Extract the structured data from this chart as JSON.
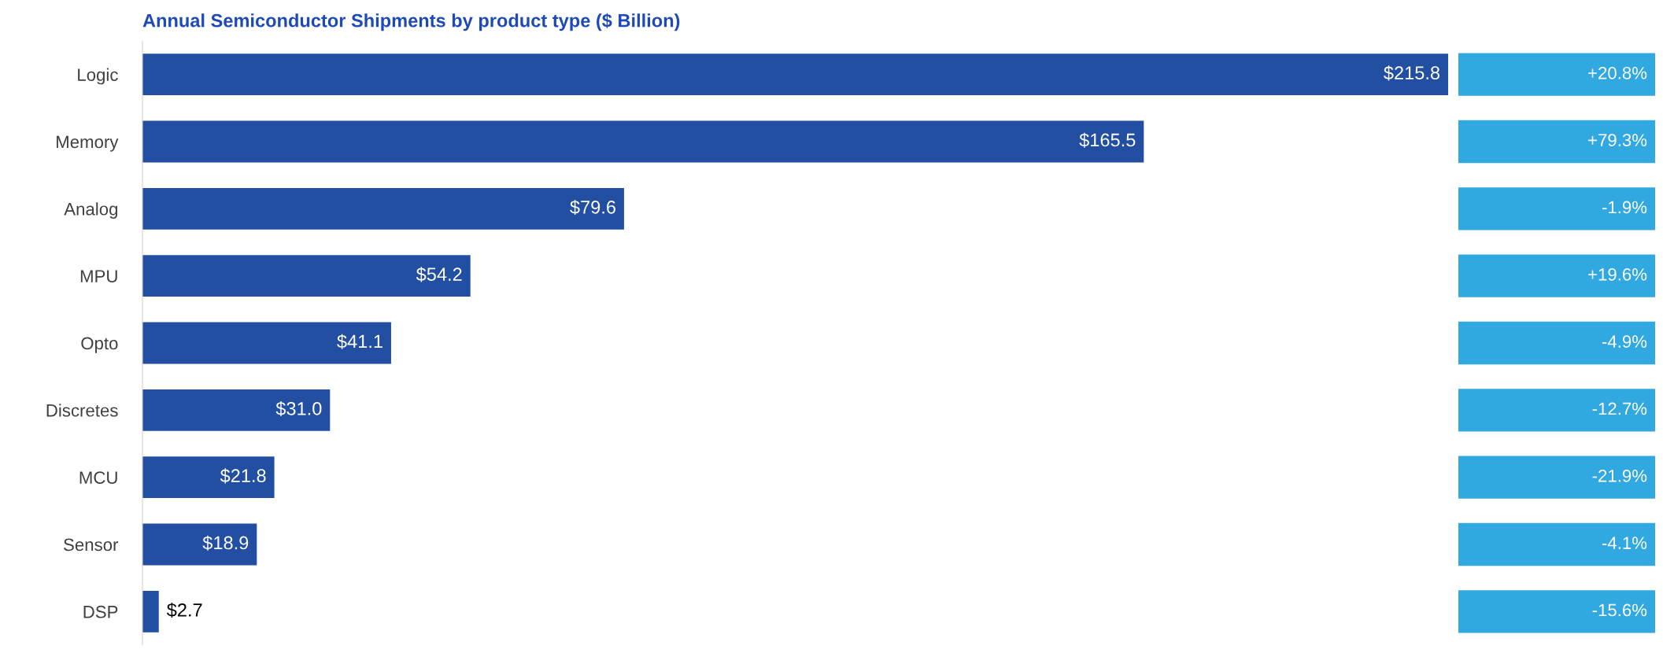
{
  "chart_data": [
    {
      "type": "bar",
      "orientation": "horizontal",
      "title": "Annual Semiconductor Shipments by product type ($ Billion)",
      "categories": [
        "Logic",
        "Memory",
        "Analog",
        "MPU",
        "Opto",
        "Discretes",
        "MCU",
        "Sensor",
        "DSP"
      ],
      "values": [
        215.8,
        165.5,
        79.6,
        54.2,
        41.1,
        31.0,
        21.8,
        18.9,
        2.7
      ],
      "value_labels": [
        "$215.8",
        "$165.5",
        "$79.6",
        "$54.2",
        "$41.1",
        "$31.0",
        "$21.8",
        "$18.9",
        "$2.7"
      ],
      "color": "#234fa3"
    },
    {
      "type": "other",
      "color": "#31a9e0",
      "annotations": [
        "+20.8%",
        "+79.3%",
        "-1.9%",
        "+19.6%",
        "-4.9%",
        "-12.7%",
        "-21.9%",
        "-4.1%",
        "-15.6%"
      ]
    }
  ]
}
